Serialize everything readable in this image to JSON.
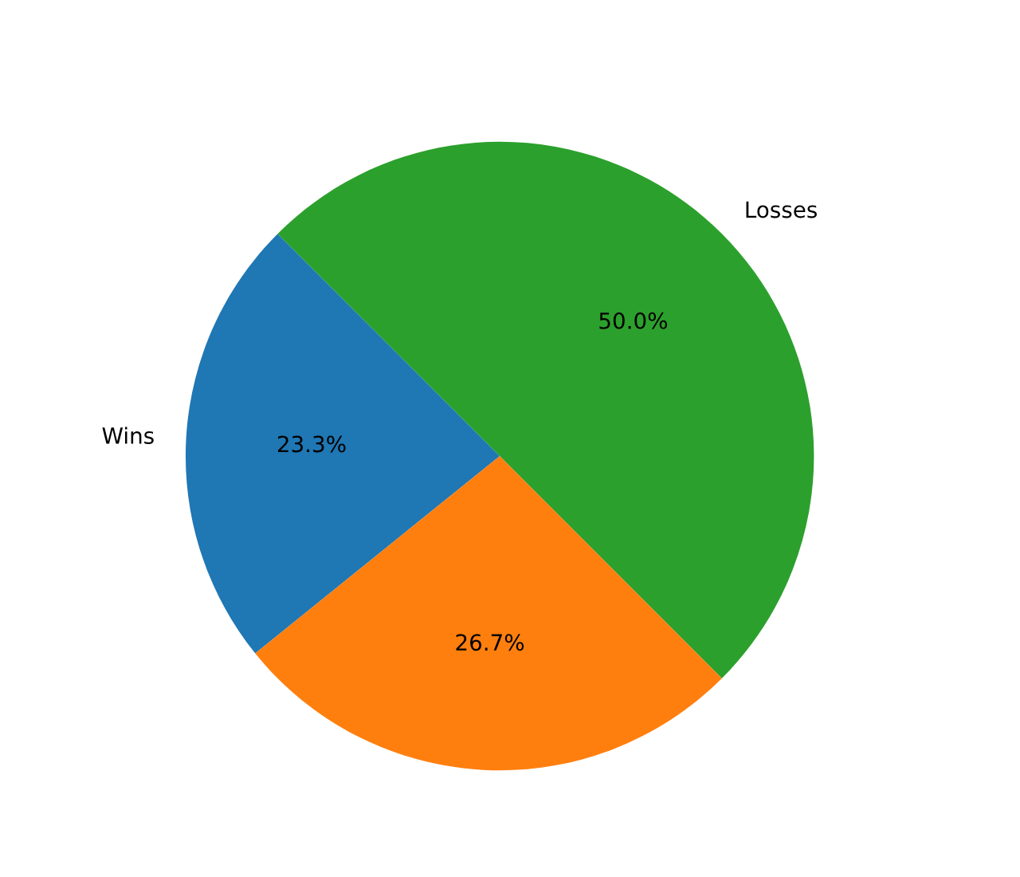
{
  "chart_data": {
    "type": "pie",
    "categories": [
      "Wins",
      null,
      "Losses"
    ],
    "values": [
      23.3,
      26.7,
      50.0
    ],
    "colors": [
      "#1f77b4",
      "#ff7f0e",
      "#2ca02c"
    ],
    "value_labels": [
      "23.3%",
      "26.7%",
      "50.0%"
    ]
  }
}
